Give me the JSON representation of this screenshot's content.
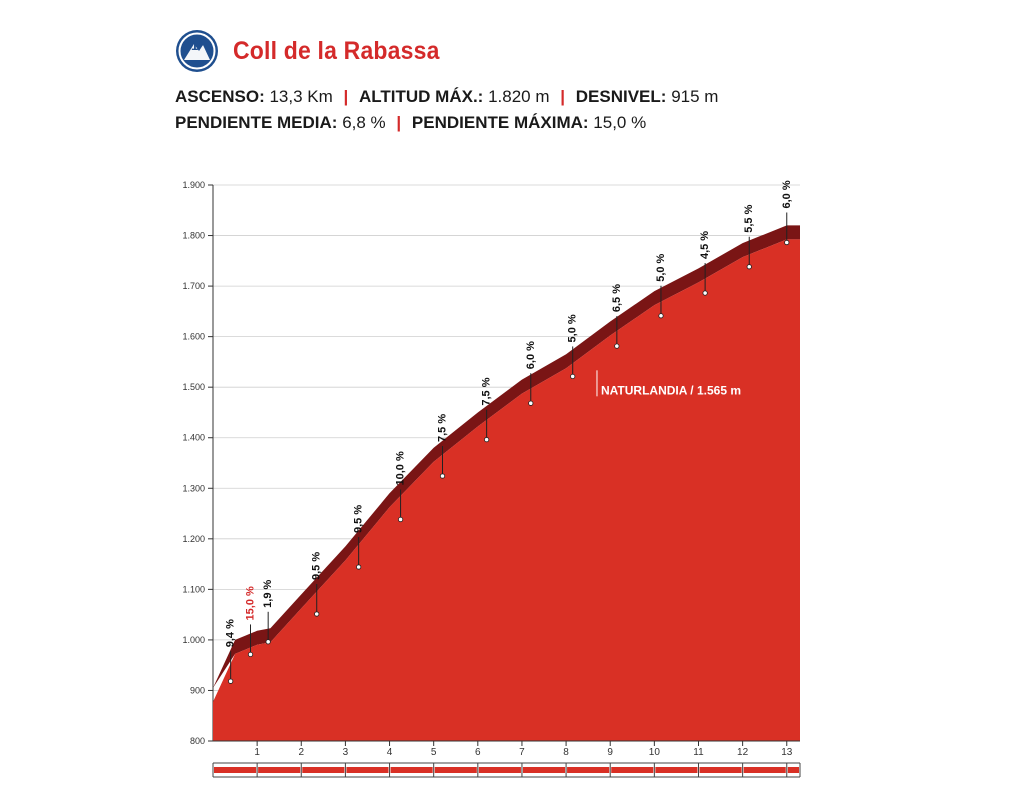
{
  "header": {
    "category_badge": "1ª",
    "category_icon": "category-1-badge-icon",
    "title": "Coll de la Rabassa",
    "stats_line1": [
      {
        "label": "ASCENSO:",
        "value": "13,3 Km"
      },
      {
        "label": "ALTITUD MÁX.:",
        "value": "1.820 m"
      },
      {
        "label": "DESNIVEL:",
        "value": "915 m"
      }
    ],
    "stats_line2": [
      {
        "label": "PENDIENTE MEDIA:",
        "value": "6,8 %"
      },
      {
        "label": "PENDIENTE MÁXIMA:",
        "value": "15,0 %"
      }
    ]
  },
  "colors": {
    "profile_fill": "#d93025",
    "profile_edge": "#7a1515",
    "title_red": "#d42a2a",
    "max_gradient_label": "#d42a2a",
    "grid": "#cfcfcf"
  },
  "chart_data": {
    "type": "area",
    "xlabel": "",
    "ylabel": "",
    "xlim": [
      0,
      13.3
    ],
    "ylim": [
      800,
      1900
    ],
    "x_ticks": [
      1,
      2,
      3,
      4,
      5,
      6,
      7,
      8,
      9,
      10,
      11,
      12,
      13
    ],
    "y_ticks": [
      800,
      900,
      1000,
      1100,
      1200,
      1300,
      1400,
      1500,
      1600,
      1700,
      1800,
      1900
    ],
    "y_tick_labels": [
      "800",
      "900",
      "1.000",
      "1.100",
      "1.200",
      "1.300",
      "1.400",
      "1.500",
      "1.600",
      "1.700",
      "1.800",
      "1.900"
    ],
    "grid": true,
    "profile": {
      "x": [
        0,
        0.5,
        1,
        1.3,
        2,
        3,
        4,
        5,
        6,
        7,
        8,
        9,
        10,
        11,
        12,
        13,
        13.3
      ],
      "y": [
        905,
        1000,
        1018,
        1023,
        1090,
        1185,
        1290,
        1380,
        1450,
        1515,
        1565,
        1630,
        1690,
        1735,
        1785,
        1820,
        1820
      ]
    },
    "gradients": [
      {
        "x": 0.4,
        "elevation": 942,
        "label": "9,4 %",
        "max": false
      },
      {
        "x": 0.85,
        "elevation": 995,
        "label": "15,0 %",
        "max": true
      },
      {
        "x": 1.25,
        "elevation": 1020,
        "label": "1,9 %",
        "max": false
      },
      {
        "x": 2.35,
        "elevation": 1075,
        "label": "9,5 %",
        "max": false
      },
      {
        "x": 3.3,
        "elevation": 1168,
        "label": "9,5 %",
        "max": false
      },
      {
        "x": 4.25,
        "elevation": 1262,
        "label": "10,0 %",
        "max": false
      },
      {
        "x": 5.2,
        "elevation": 1348,
        "label": "7,5 %",
        "max": false
      },
      {
        "x": 6.2,
        "elevation": 1420,
        "label": "7,5 %",
        "max": false
      },
      {
        "x": 7.2,
        "elevation": 1492,
        "label": "6,0 %",
        "max": false
      },
      {
        "x": 8.15,
        "elevation": 1545,
        "label": "5,0 %",
        "max": false
      },
      {
        "x": 9.15,
        "elevation": 1605,
        "label": "6,5 %",
        "max": false
      },
      {
        "x": 10.15,
        "elevation": 1665,
        "label": "5,0 %",
        "max": false
      },
      {
        "x": 11.15,
        "elevation": 1710,
        "label": "4,5 %",
        "max": false
      },
      {
        "x": 12.15,
        "elevation": 1762,
        "label": "5,5 %",
        "max": false
      },
      {
        "x": 13.0,
        "elevation": 1810,
        "label": "6,0 %",
        "max": false
      }
    ],
    "annotations": [
      {
        "x": 8.7,
        "elevation": 1565,
        "text": "NATURLANDIA / 1.565 m"
      }
    ],
    "km_bar": true
  }
}
